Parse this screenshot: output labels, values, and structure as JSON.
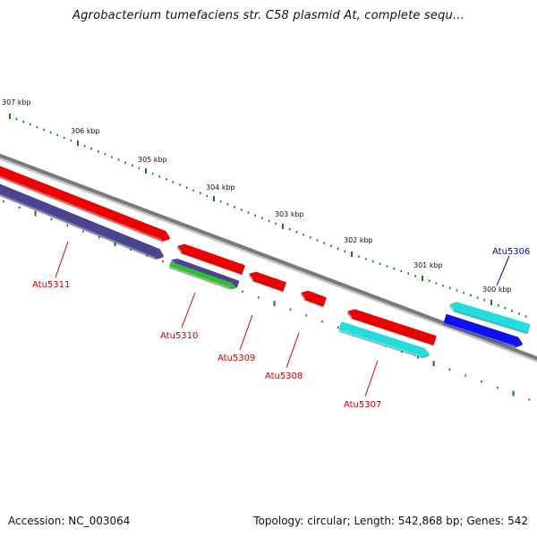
{
  "title": "Agrobacterium tumefaciens str. C58 plasmid At, complete sequ...",
  "footer": {
    "accession": "Accession: NC_003064",
    "summary": "Topology: circular; Length: 542,868 bp; Genes: 542"
  },
  "colors": {
    "backbone": "#7a7a7a",
    "ticks": "#1a7a1a",
    "red": "#ee0000",
    "slate": "#4a4590",
    "green": "#33bb33",
    "cyan": "#22dddd",
    "blue": "#1010ee",
    "label_red": "#cc0000",
    "label_blue": "#0000cc"
  },
  "scale": {
    "unit": "kbp",
    "ticks": [
      {
        "label": "307 kbp",
        "kbp": 307
      },
      {
        "label": "306 kbp",
        "kbp": 306
      },
      {
        "label": "305 kbp",
        "kbp": 305
      },
      {
        "label": "304 kbp",
        "kbp": 304
      },
      {
        "label": "303 kbp",
        "kbp": 303
      },
      {
        "label": "302 kbp",
        "kbp": 302
      },
      {
        "label": "301 kbp",
        "kbp": 301
      },
      {
        "label": "300 kbp",
        "kbp": 300
      }
    ]
  },
  "genes": [
    {
      "label": "Atu5311",
      "color": "red"
    },
    {
      "label": "Atu5310",
      "color": "red"
    },
    {
      "label": "Atu5309",
      "color": "red"
    },
    {
      "label": "Atu5308",
      "color": "red"
    },
    {
      "label": "Atu5307",
      "color": "red"
    },
    {
      "label": "Atu5306",
      "color": "blue"
    }
  ]
}
